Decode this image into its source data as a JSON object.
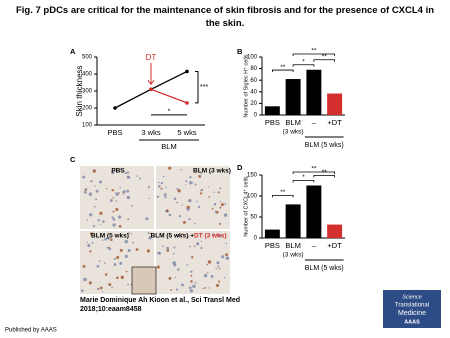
{
  "title": "Fig. 7 pDCs are critical for the maintenance of skin fibrosis and for the presence of CXCL4 in the skin.",
  "chart_data": [
    {
      "type": "line",
      "panel": "A",
      "ylabel": "Skin thickness",
      "categories": [
        "PBS",
        "3 wks",
        "5 wks"
      ],
      "group_label": "BLM",
      "series": [
        {
          "color": "#000000",
          "values": [
            200,
            310,
            415
          ]
        },
        {
          "color": "#d32f2f",
          "values": [
            null,
            310,
            230
          ]
        }
      ],
      "ylim": [
        100,
        500
      ],
      "yticks": [
        100,
        200,
        300,
        400,
        500
      ],
      "annotations": [
        "DT",
        "***",
        "*"
      ]
    },
    {
      "type": "bar",
      "panel": "B",
      "ylabel": "Number of Siglec H⁺ cells",
      "categories": [
        "PBS",
        "BLM",
        "–",
        "+DT"
      ],
      "category_notes": [
        null,
        "(3 wks)",
        null,
        null
      ],
      "group_label": "BLM (5 wks)",
      "values": [
        15,
        62,
        78,
        37
      ],
      "colors": [
        "#000000",
        "#000000",
        "#000000",
        "#d32f2f"
      ],
      "ylim": [
        0,
        100
      ],
      "yticks": [
        0,
        20,
        40,
        60,
        80,
        100
      ],
      "annotations": [
        "**",
        "*",
        "**",
        "**"
      ]
    },
    {
      "type": "bar",
      "panel": "D",
      "ylabel": "Number of CXCL4⁺ cells",
      "categories": [
        "PBS",
        "BLM",
        "–",
        "+DT"
      ],
      "category_notes": [
        null,
        "(3 wks)",
        null,
        null
      ],
      "group_label": "BLM (5 wks)",
      "values": [
        20,
        80,
        125,
        32
      ],
      "colors": [
        "#000000",
        "#000000",
        "#000000",
        "#d32f2f"
      ],
      "ylim": [
        0,
        150
      ],
      "yticks": [
        0,
        50,
        100,
        150
      ],
      "annotations": [
        "**",
        "*",
        "**",
        "**"
      ]
    }
  ],
  "images": {
    "panel": "C",
    "labels": [
      "PBS",
      "BLM (3 wks)",
      "BLM (5 wks)",
      "BLM (5 wks) + ",
      "DT (3 wks)"
    ]
  },
  "citation": "Marie Dominique Ah Kioon et al., Sci Transl Med",
  "citation_ref": "2018;10:eaam8458",
  "publisher": "Published by AAAS",
  "logo": [
    "Science",
    "Translational",
    "Medicine",
    "AAAS"
  ]
}
